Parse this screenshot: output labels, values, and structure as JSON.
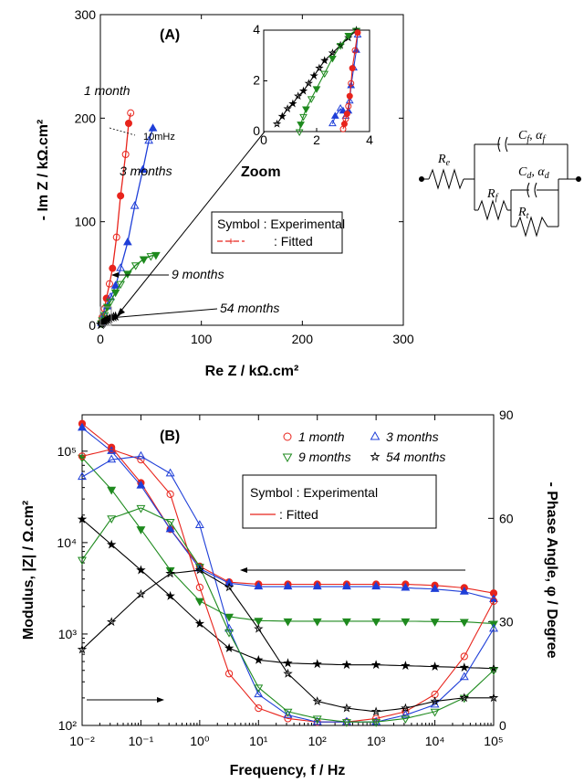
{
  "chart_data": [
    {
      "type": "scatter",
      "panel_label": "(A)",
      "xlabel": "Re Z / kΩ.cm²",
      "ylabel": "- Im Z / kΩ.cm²",
      "xlim": [
        0,
        300
      ],
      "ylim": [
        0,
        300
      ],
      "xticks": [
        "0",
        "100",
        "200",
        "300"
      ],
      "yticks": [
        "0",
        "100",
        "200",
        "300"
      ],
      "series": [
        {
          "name": "1 month",
          "color": "#e8241c",
          "marker": "circle",
          "x": [
            1,
            2,
            4,
            6,
            9,
            12,
            16,
            20,
            25,
            28,
            30
          ],
          "y": [
            3,
            8,
            16,
            26,
            40,
            55,
            85,
            125,
            165,
            195,
            205
          ]
        },
        {
          "name": "3 months",
          "color": "#1f3fd8",
          "marker": "triangle-up",
          "x": [
            1,
            2,
            4,
            7,
            10,
            15,
            20,
            27,
            34,
            42,
            48,
            52
          ],
          "y": [
            2,
            5,
            10,
            18,
            27,
            38,
            55,
            80,
            115,
            150,
            178,
            190
          ]
        },
        {
          "name": "9 months",
          "color": "#1e8a1e",
          "marker": "triangle-down",
          "x": [
            1,
            2,
            4,
            7,
            10,
            15,
            20,
            27,
            35,
            43,
            50,
            55
          ],
          "y": [
            2,
            5,
            10,
            18,
            23,
            32,
            40,
            50,
            58,
            64,
            67,
            68
          ]
        },
        {
          "name": "54 months",
          "color": "#000000",
          "marker": "star",
          "x": [
            0.5,
            1.5,
            2.5,
            4,
            5.5,
            7,
            9,
            11,
            13,
            15
          ],
          "y": [
            0.5,
            1.5,
            2.5,
            3.5,
            4.5,
            5.5,
            6.5,
            7.5,
            8,
            8.5
          ]
        }
      ],
      "annotations": [
        "1 month",
        "3 months",
        "9 months",
        "54 months",
        "10mHz",
        "Zoom"
      ],
      "legend": {
        "symbol_label": "Symbol : Experimental",
        "fitted_label": ": Fitted"
      },
      "inset": {
        "xlim": [
          0,
          4
        ],
        "ylim": [
          0,
          4
        ],
        "xticks": [
          "0",
          "2",
          "4"
        ],
        "yticks": [
          "0",
          "2",
          "4"
        ],
        "series": [
          {
            "name": "54 months",
            "color": "#000000",
            "x": [
              0.5,
              0.7,
              0.9,
              1.1,
              1.3,
              1.5,
              1.7,
              1.9,
              2.1,
              2.3,
              2.6,
              2.9,
              3.2,
              3.5
            ],
            "y": [
              0.3,
              0.6,
              0.9,
              1.1,
              1.4,
              1.6,
              1.9,
              2.2,
              2.5,
              2.8,
              3.1,
              3.4,
              3.7,
              4.0
            ]
          },
          {
            "name": "9 months",
            "color": "#1e8a1e",
            "x": [
              1.35,
              1.4,
              1.5,
              1.6,
              1.8,
              2.0,
              2.3,
              2.6,
              2.9,
              3.2,
              3.5
            ],
            "y": [
              0.0,
              0.3,
              0.6,
              0.9,
              1.3,
              1.7,
              2.3,
              2.9,
              3.4,
              3.8,
              4.0
            ]
          },
          {
            "name": "3 months",
            "color": "#1f3fd8",
            "x": [
              2.6,
              2.7,
              2.9,
              3.0,
              3.1,
              3.2,
              3.25,
              3.3,
              3.4,
              3.5,
              3.55
            ],
            "y": [
              0.3,
              0.6,
              0.9,
              0.8,
              0.6,
              0.8,
              1.2,
              1.8,
              2.5,
              3.2,
              3.8
            ]
          },
          {
            "name": "1 month",
            "color": "#e8241c",
            "x": [
              3.0,
              3.05,
              3.1,
              3.15,
              3.2,
              3.25,
              3.3,
              3.35,
              3.45,
              3.55
            ],
            "y": [
              0.1,
              0.3,
              0.5,
              0.7,
              1.0,
              1.4,
              1.9,
              2.5,
              3.2,
              3.9
            ]
          }
        ]
      }
    },
    {
      "type": "line",
      "panel_label": "(B)",
      "xlabel": "Frequency, f / Hz",
      "ylabel": "Modulus, |Z| / Ω.cm²",
      "y2label": "- Phase Angle, φ / Degree",
      "xscale": "log",
      "yscale": "log",
      "xlim": [
        0.01,
        100000
      ],
      "ylim": [
        100,
        250000
      ],
      "y2lim": [
        0,
        90
      ],
      "xticks": [
        "10⁻²",
        "10⁻¹",
        "10⁰",
        "10¹",
        "10²",
        "10³",
        "10⁴",
        "10⁵"
      ],
      "yticks": [
        "10²",
        "10³",
        "10⁴",
        "10⁵"
      ],
      "y2ticks": [
        "0",
        "30",
        "60",
        "90"
      ],
      "x": [
        0.01,
        0.0316,
        0.1,
        0.316,
        1,
        3.16,
        10,
        31.6,
        100,
        316,
        1000,
        3162,
        10000,
        31623,
        100000
      ],
      "series": [
        {
          "name": "1 month",
          "color": "#e8241c",
          "kind": "modulus",
          "values": [
            200000,
            110000,
            45000,
            14000,
            5500,
            3700,
            3500,
            3500,
            3500,
            3500,
            3500,
            3500,
            3400,
            3200,
            2800
          ]
        },
        {
          "name": "3 months",
          "color": "#1f3fd8",
          "kind": "modulus",
          "values": [
            180000,
            100000,
            42000,
            14000,
            5200,
            3600,
            3300,
            3300,
            3300,
            3300,
            3300,
            3200,
            3100,
            2900,
            2400
          ]
        },
        {
          "name": "9 months",
          "color": "#1e8a1e",
          "kind": "modulus",
          "values": [
            85000,
            38000,
            14000,
            5000,
            2300,
            1550,
            1400,
            1380,
            1380,
            1380,
            1380,
            1380,
            1370,
            1360,
            1300
          ]
        },
        {
          "name": "54 months",
          "color": "#000000",
          "kind": "modulus",
          "values": [
            18000,
            9500,
            5000,
            2600,
            1300,
            700,
            520,
            480,
            470,
            460,
            460,
            450,
            440,
            430,
            420
          ]
        },
        {
          "name": "1 month",
          "color": "#e8241c",
          "kind": "phase",
          "values": [
            78,
            80,
            77,
            67,
            40,
            15,
            5,
            2,
            1,
            1,
            2,
            4,
            9,
            20,
            36
          ]
        },
        {
          "name": "3 months",
          "color": "#1f3fd8",
          "kind": "phase",
          "values": [
            72,
            77,
            78,
            73,
            58,
            28,
            9,
            3,
            1,
            1,
            1,
            3,
            6,
            14,
            28
          ]
        },
        {
          "name": "9 months",
          "color": "#1e8a1e",
          "kind": "phase",
          "values": [
            48,
            60,
            63,
            59,
            46,
            27,
            11,
            4,
            2,
            1,
            1,
            2,
            4,
            8,
            16
          ]
        },
        {
          "name": "54 months",
          "color": "#000000",
          "kind": "phase",
          "values": [
            22,
            30,
            38,
            44,
            45,
            40,
            28,
            15,
            7,
            5,
            4,
            5,
            7,
            8,
            8
          ]
        }
      ],
      "legend_entries": [
        "1 month",
        "3 months",
        "9 months",
        "54 months"
      ],
      "legend": {
        "symbol_label": "Symbol : Experimental",
        "fitted_label": ": Fitted"
      }
    }
  ],
  "circuit": {
    "labels": [
      "R",
      "e",
      "R",
      "f",
      "C",
      "f",
      ", α",
      "f",
      "C",
      "d",
      ", α",
      "d",
      "R",
      "t"
    ]
  }
}
